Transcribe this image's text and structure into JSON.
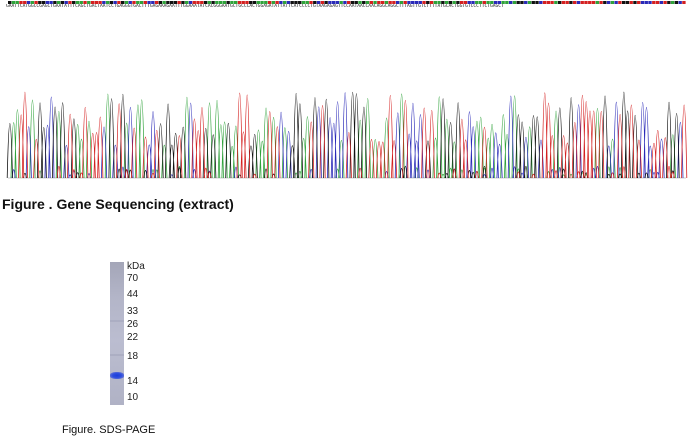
{
  "sequencing": {
    "sequence_text": "GAATTCATGGCCGAGCTGAATATTTCAGCTGACTAATCCTGAGGGTGACTTTGAGAAAGAATTTGGAAATATCACGGGAATGCTGCCCACTGGAGATATTATTCATCCCCTGTAAGAGAGTTCCAATAACCAACAGGCAGGCTTTAGTTGTCTTTTATGCACTGGTGTCCCTTCTGAGCT",
    "caption": "Figure . Gene Sequencing (extract)",
    "trace_colors": {
      "A": "#2fa23a",
      "C": "#2a2ab8",
      "G": "#111111",
      "T": "#d42020"
    }
  },
  "sds_page": {
    "unit_label": "kDa",
    "markers": [
      "70",
      "44",
      "33",
      "26",
      "22",
      "18",
      "14",
      "10"
    ],
    "caption": "Figure. SDS-PAGE",
    "band_color": "#1b3fd8"
  }
}
